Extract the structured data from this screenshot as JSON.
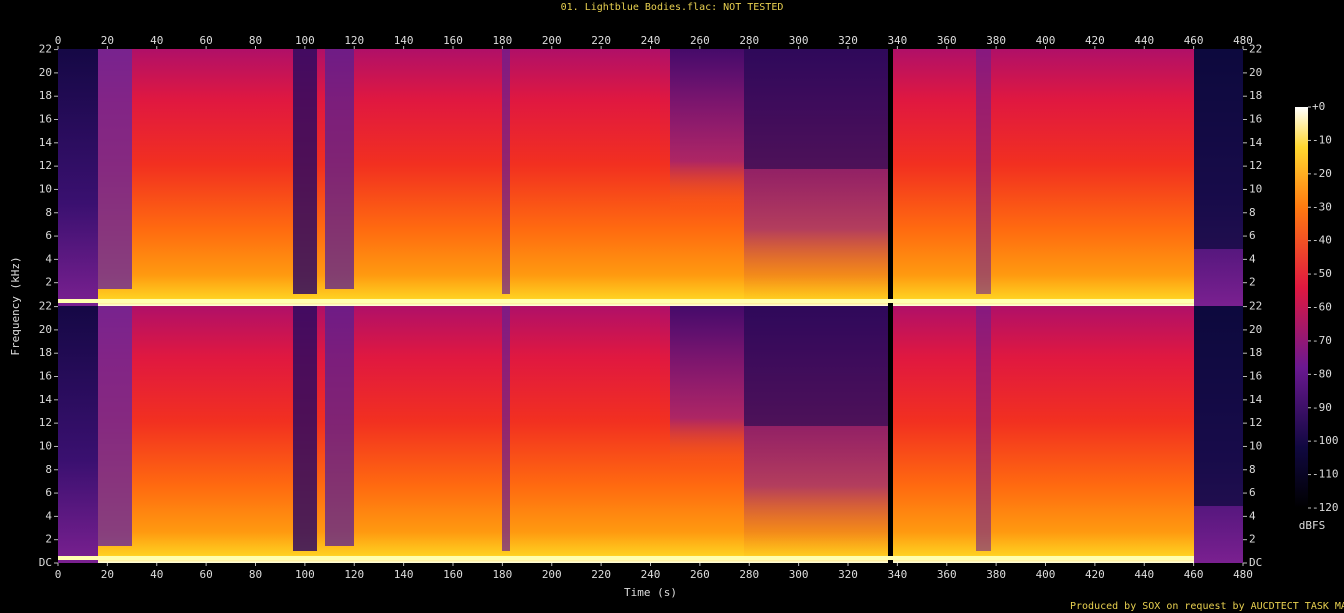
{
  "chart_data": [
    {
      "type": "spectrogram",
      "title": "01. Lightblue Bodies.flac: NOT TESTED",
      "ylabel": "Frequency (kHz)",
      "xlim": [
        0,
        480
      ],
      "xticks": [
        0,
        20,
        40,
        60,
        80,
        100,
        120,
        140,
        160,
        180,
        200,
        220,
        240,
        260,
        280,
        300,
        320,
        340,
        360,
        380,
        400,
        420,
        440,
        460,
        480
      ],
      "x_axis_position": "top",
      "ylim": [
        0,
        22.05
      ],
      "yticks": [
        2,
        4,
        6,
        8,
        10,
        12,
        14,
        16,
        18,
        20,
        22
      ]
    },
    {
      "type": "spectrogram",
      "xlabel": "Time (s)",
      "footer": "Produced by SOX on request by AUCDTECT TASK MANAGER",
      "xlim": [
        0,
        480
      ],
      "xticks": [
        0,
        20,
        40,
        60,
        80,
        100,
        120,
        140,
        160,
        180,
        200,
        220,
        240,
        260,
        280,
        300,
        320,
        340,
        360,
        380,
        400,
        420,
        440,
        460,
        480
      ],
      "x_axis_position": "bottom",
      "ylim": [
        0,
        22.05
      ],
      "yticks": [
        {
          "value": 0,
          "label": "DC"
        },
        2,
        4,
        6,
        8,
        10,
        12,
        14,
        16,
        18,
        20,
        22
      ]
    },
    {
      "type": "colorbar",
      "label": "dBFS",
      "ylim": [
        -120,
        0
      ],
      "yticks": [
        {
          "value": 0,
          "label": "+0"
        },
        -10,
        -20,
        -30,
        -40,
        -50,
        -60,
        -70,
        -80,
        -90,
        -100,
        -110,
        -120
      ]
    }
  ]
}
